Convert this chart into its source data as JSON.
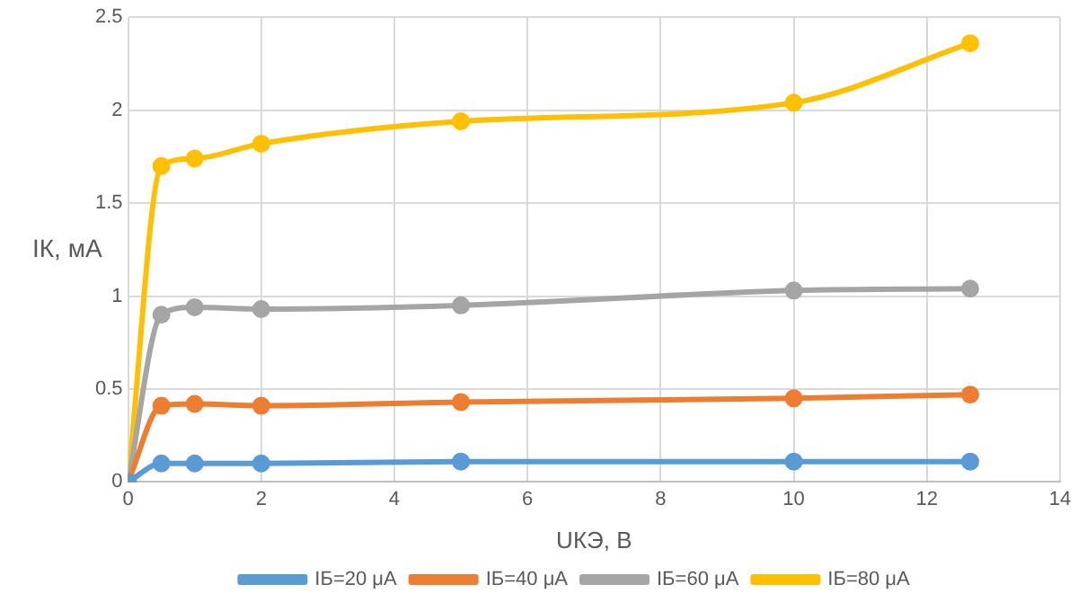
{
  "chart_data": {
    "type": "line",
    "xlabel": "UКЭ, В",
    "ylabel": "IК, мА",
    "x": [
      0,
      0.5,
      1,
      2,
      5,
      10,
      12.65
    ],
    "series": [
      {
        "name": "IБ=20 μA",
        "color": "#5b9bd5",
        "values": [
          0,
          0.1,
          0.1,
          0.1,
          0.11,
          0.11,
          0.11
        ]
      },
      {
        "name": "IБ=40 μA",
        "color": "#ed7d31",
        "values": [
          0,
          0.41,
          0.42,
          0.41,
          0.43,
          0.45,
          0.47
        ]
      },
      {
        "name": "IБ=60 μA",
        "color": "#a5a5a5",
        "values": [
          0,
          0.9,
          0.94,
          0.93,
          0.95,
          1.03,
          1.04
        ]
      },
      {
        "name": "IБ=80 μA",
        "color": "#ffc000",
        "values": [
          0,
          1.7,
          1.74,
          1.82,
          1.94,
          2.04,
          2.36
        ]
      }
    ],
    "xlim": [
      0,
      14
    ],
    "xticks": [
      0,
      2,
      4,
      6,
      8,
      10,
      12,
      14
    ],
    "ylim": [
      0,
      2.5
    ],
    "yticks": [
      0,
      0.5,
      1,
      1.5,
      2,
      2.5
    ],
    "grid": true,
    "legend": "bottom",
    "marker": "circle",
    "line_style": "solid"
  }
}
